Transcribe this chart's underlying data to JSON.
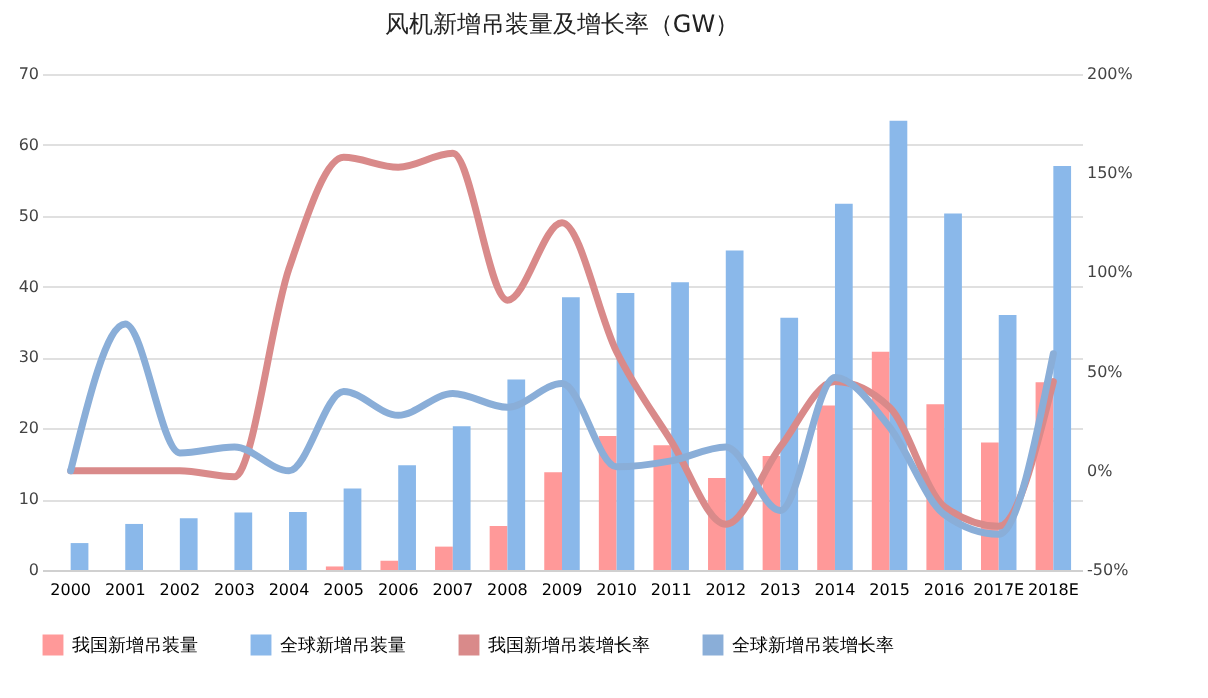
{
  "chart_data": {
    "type": "bar",
    "title": "风机新增吊装量及增长率（GW）",
    "categories": [
      "2000",
      "2001",
      "2002",
      "2003",
      "2004",
      "2005",
      "2006",
      "2007",
      "2008",
      "2009",
      "2010",
      "2011",
      "2012",
      "2013",
      "2014",
      "2015",
      "2016",
      "2017E",
      "2018E"
    ],
    "series": [
      {
        "name": "我国新增吊装量",
        "color": "#ff9999",
        "values": [
          0,
          0,
          0,
          0,
          0,
          0.5,
          1.3,
          3.3,
          6.2,
          13.8,
          18.9,
          17.6,
          13.0,
          16.1,
          23.2,
          30.8,
          23.4,
          18.0,
          26.5
        ]
      },
      {
        "name": "全球新增吊装量",
        "color": "#8ab8ea",
        "values": [
          3.8,
          6.5,
          7.3,
          8.1,
          8.2,
          11.5,
          14.8,
          20.3,
          26.9,
          38.5,
          39.1,
          40.6,
          45.1,
          35.6,
          51.7,
          63.4,
          50.3,
          36.0,
          57.0
        ]
      },
      {
        "name": "我国新增吊装增长率",
        "type": "line",
        "axis": "y2",
        "color": "#d98a8a",
        "values": [
          0,
          0,
          0,
          -3,
          102,
          158,
          153,
          160,
          86,
          125,
          60,
          15,
          -27,
          12,
          45,
          32,
          -18,
          -28,
          45
        ]
      },
      {
        "name": "全球新增吊装增长率",
        "type": "line",
        "axis": "y2",
        "color": "#8aaed8",
        "values": [
          0,
          74,
          9,
          12,
          0,
          40,
          28,
          39,
          32,
          44,
          2,
          5,
          12,
          -20,
          47,
          22,
          -22,
          -32,
          59
        ]
      }
    ],
    "ylim": [
      0,
      70
    ],
    "yticks": [
      0,
      10,
      20,
      30,
      40,
      50,
      60,
      70
    ],
    "y2lim": [
      -50,
      200
    ],
    "y2ticks": [
      {
        "value": -50,
        "label": "-50%"
      },
      {
        "value": 0,
        "label": "0%"
      },
      {
        "value": 50,
        "label": "50%"
      },
      {
        "value": 100,
        "label": "100%"
      },
      {
        "value": 150,
        "label": "150%"
      },
      {
        "value": 200,
        "label": "200%"
      }
    ],
    "grid": "y",
    "legend": "bottom",
    "marker": "none",
    "line_style": "solid"
  }
}
